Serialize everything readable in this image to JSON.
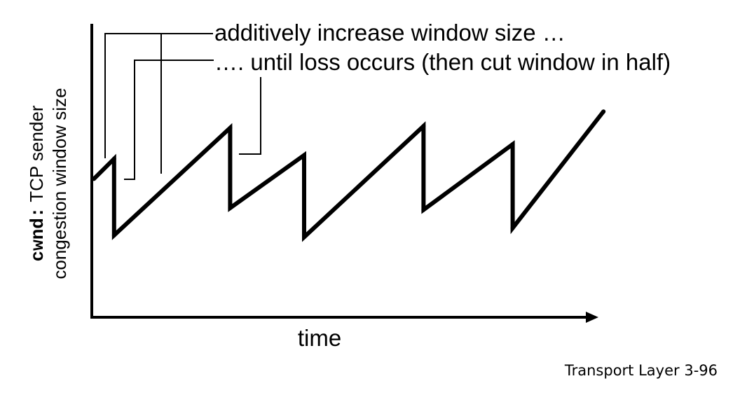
{
  "chart_data": {
    "type": "line",
    "title": "",
    "xlabel": "time",
    "ylabel_code": "cwnd:",
    "ylabel_line1": "TCP sender",
    "ylabel_line2": "congestion window size",
    "annotations": [
      "additively increase window size …",
      "…. until loss occurs (then cut window in half)"
    ],
    "grid": false,
    "legend": "none",
    "series": [
      {
        "points": [
          [
            0.0,
            6.1
          ],
          [
            1.2,
            7.2
          ],
          [
            1.2,
            3.0
          ],
          [
            8.1,
            8.9
          ],
          [
            8.1,
            4.5
          ],
          [
            12.5,
            7.4
          ],
          [
            12.5,
            2.9
          ],
          [
            19.6,
            9.0
          ],
          [
            19.6,
            4.4
          ],
          [
            24.9,
            8.0
          ],
          [
            24.9,
            3.4
          ],
          [
            30.3,
            9.8
          ]
        ]
      }
    ]
  },
  "footer": {
    "label": "Transport Layer",
    "page": "3-96"
  }
}
